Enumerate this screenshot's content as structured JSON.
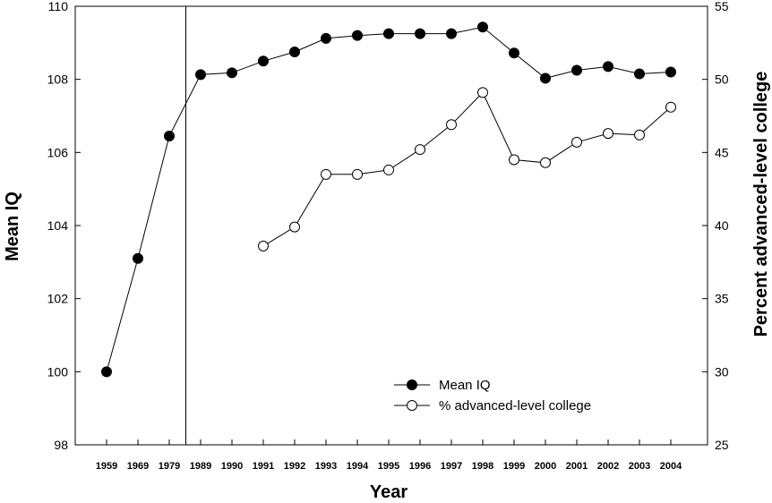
{
  "chart_data": {
    "type": "line",
    "xlabel": "Year",
    "ylabel_left": "Mean IQ",
    "ylabel_right": "Percent advanced-level college",
    "categories": [
      "1959",
      "1969",
      "1979",
      "1989",
      "1990",
      "1991",
      "1992",
      "1993",
      "1994",
      "1995",
      "1996",
      "1997",
      "1998",
      "1999",
      "2000",
      "2001",
      "2002",
      "2003",
      "2004"
    ],
    "ylim_left": [
      98,
      110
    ],
    "yticks_left": [
      98,
      100,
      102,
      104,
      106,
      108,
      110
    ],
    "ylim_right": [
      25,
      55
    ],
    "yticks_right": [
      25,
      30,
      35,
      40,
      45,
      50,
      55
    ],
    "grid": false,
    "reference_line_after_category": "1979",
    "legend_position": "bottom-center",
    "series": [
      {
        "name": "Mean IQ",
        "axis": "left",
        "marker": "filled-circle",
        "values": [
          100.0,
          103.1,
          106.45,
          108.13,
          108.18,
          108.5,
          108.75,
          109.12,
          109.2,
          109.25,
          109.25,
          109.25,
          109.43,
          108.72,
          108.03,
          108.25,
          108.35,
          108.15,
          108.2
        ]
      },
      {
        "name": "% advanced-level college",
        "axis": "right",
        "marker": "open-circle",
        "values": [
          null,
          null,
          null,
          null,
          null,
          38.6,
          39.9,
          43.5,
          43.5,
          43.8,
          45.2,
          46.9,
          49.1,
          44.5,
          44.3,
          45.7,
          46.3,
          46.2,
          48.1
        ]
      }
    ]
  }
}
